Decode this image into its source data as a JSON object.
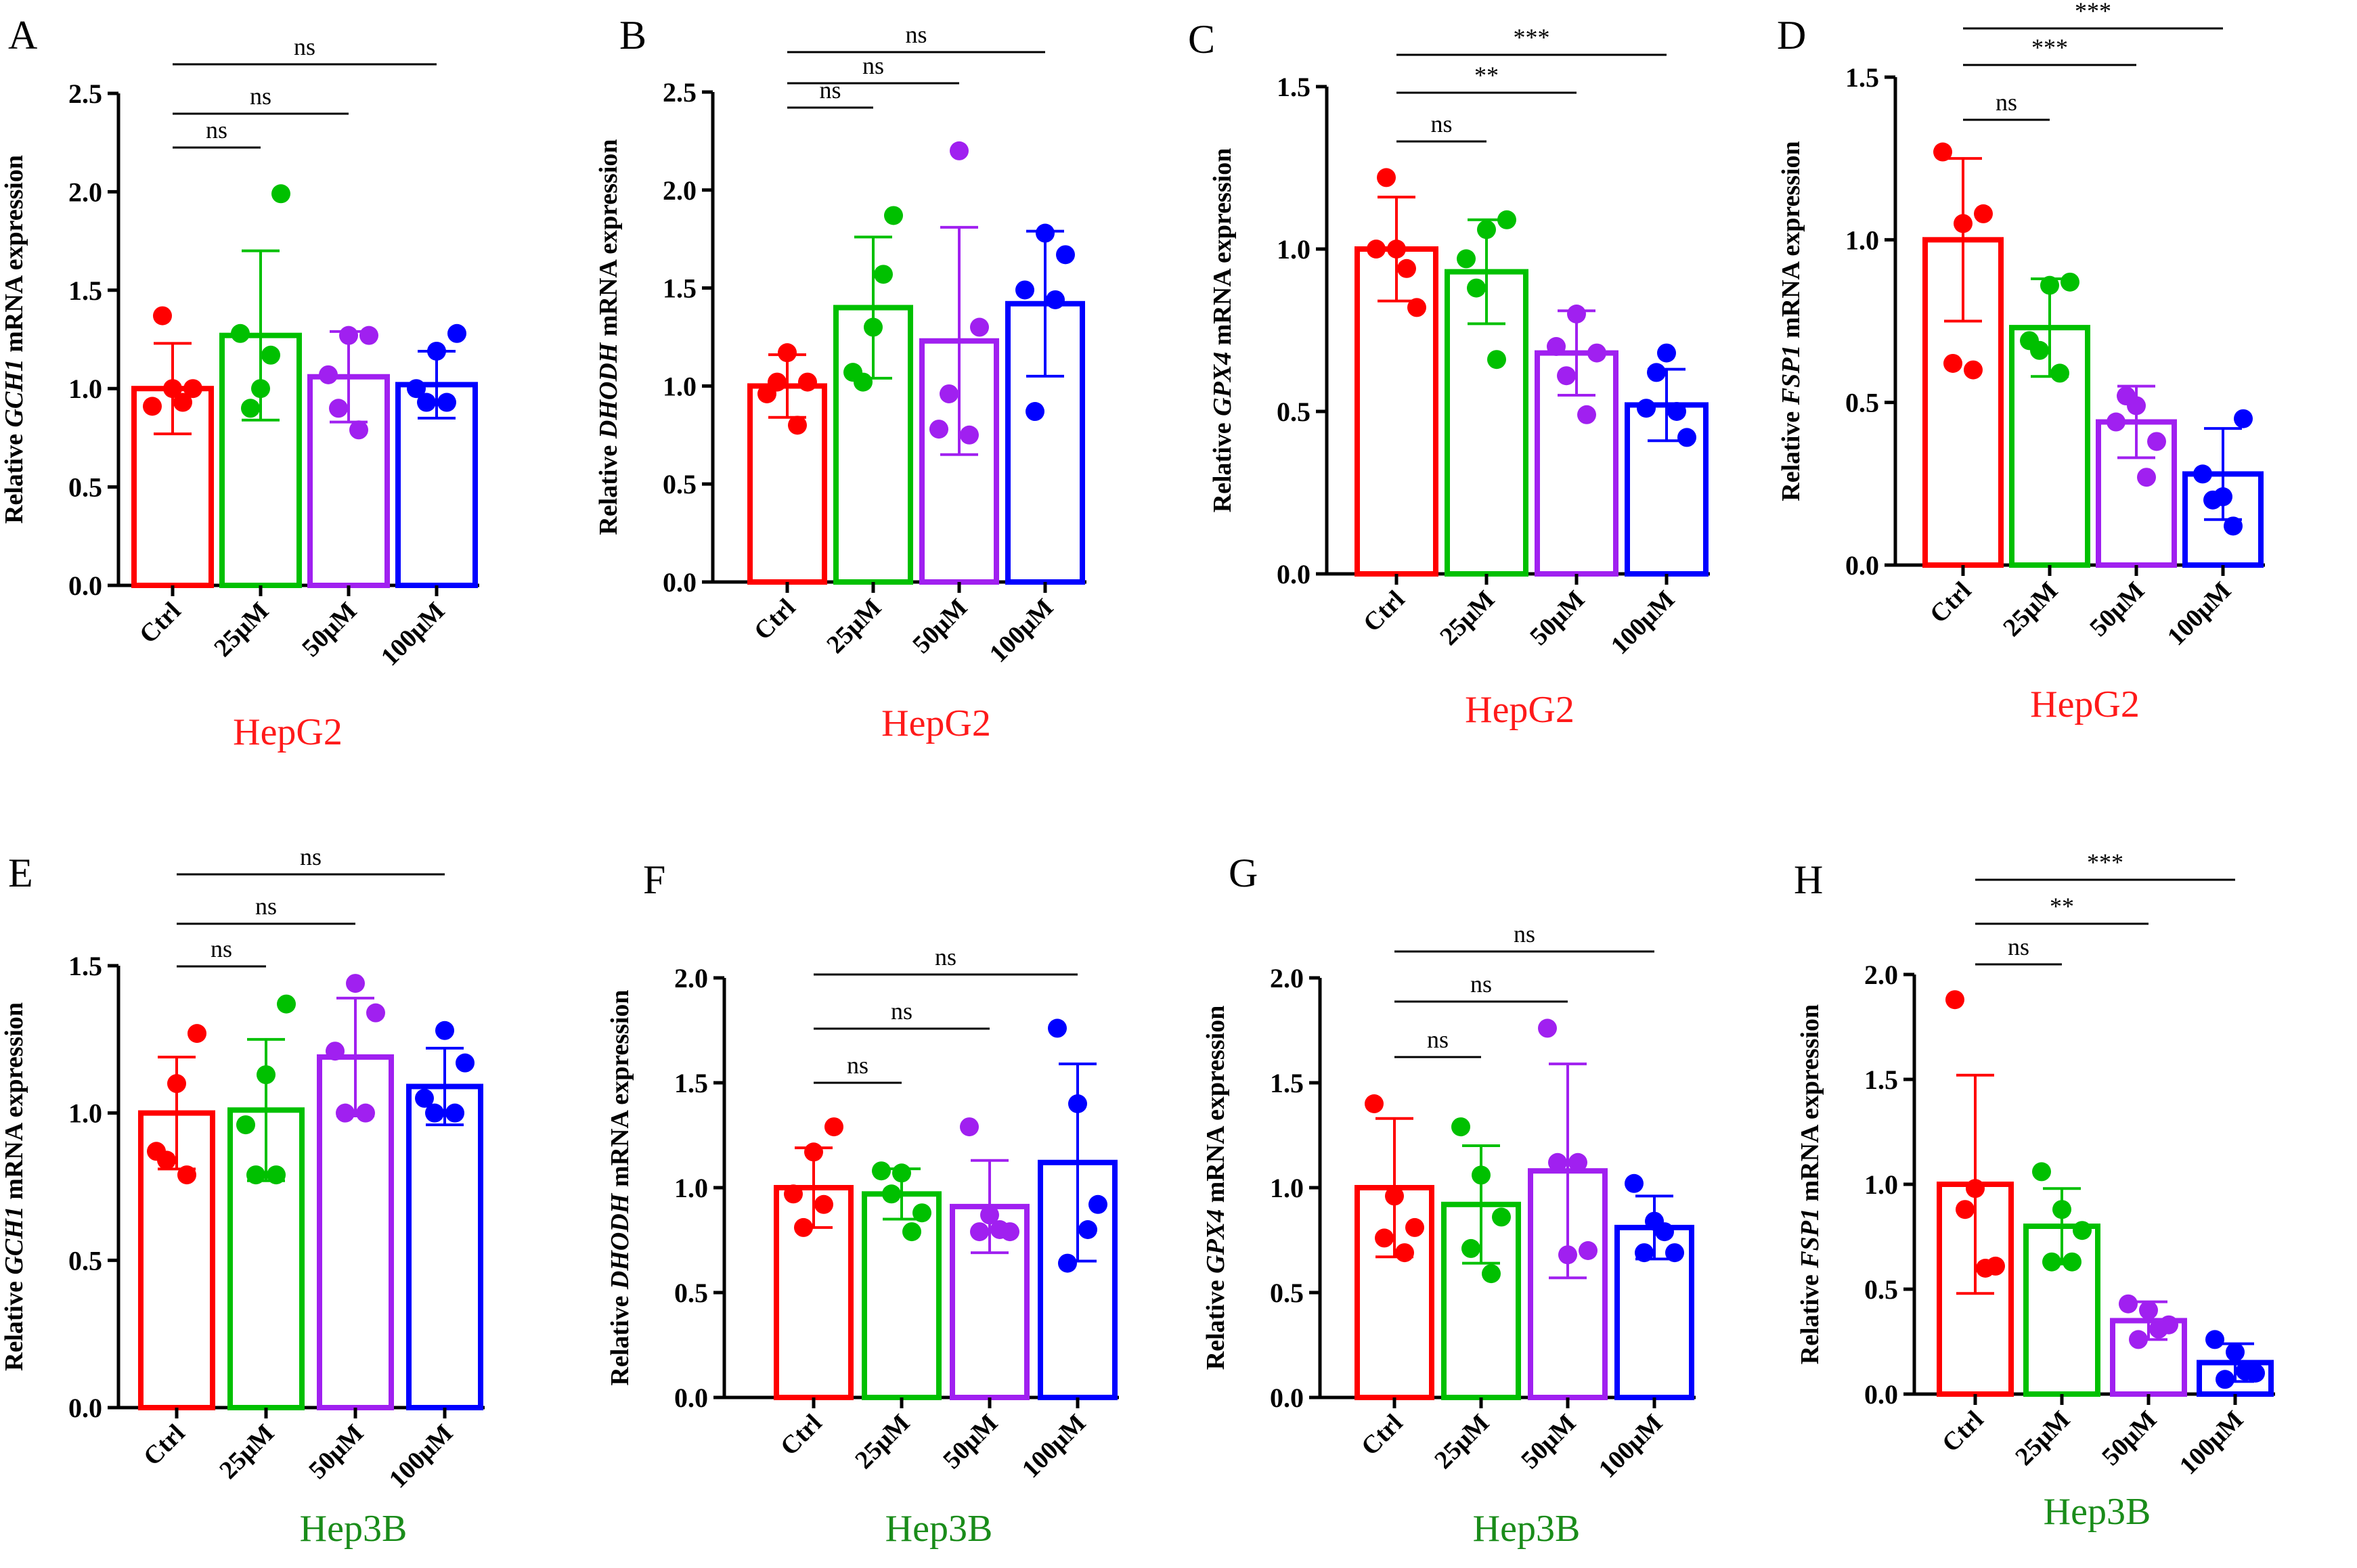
{
  "chart_data": [
    {
      "type": "bar",
      "panel": "A",
      "cell_line": "HepG2",
      "gene": "GCH1",
      "ylabel_prefix": "Relative ",
      "ylabel_suffix": " mRNA expression",
      "categories": [
        "Ctrl",
        "25μM",
        "50μM",
        "100μM"
      ],
      "ylim": [
        0,
        2.5
      ],
      "yticks": [
        "0.0",
        "0.5",
        "1.0",
        "1.5",
        "2.0",
        "2.5"
      ],
      "means": [
        1.0,
        1.27,
        1.06,
        1.02
      ],
      "sd": [
        0.23,
        0.43,
        0.23,
        0.17
      ],
      "points": [
        [
          0.91,
          1.0,
          1.0,
          1.37,
          0.93
        ],
        [
          1.28,
          1.0,
          1.99,
          0.9,
          1.17
        ],
        [
          1.07,
          1.27,
          1.27,
          0.9,
          0.79
        ],
        [
          1.0,
          1.19,
          1.28,
          0.93,
          0.93
        ]
      ],
      "comparisons": [
        {
          "from": 0,
          "to": 1,
          "label": "ns"
        },
        {
          "from": 0,
          "to": 2,
          "label": "ns"
        },
        {
          "from": 0,
          "to": 3,
          "label": "ns"
        }
      ]
    },
    {
      "type": "bar",
      "panel": "B",
      "cell_line": "HepG2",
      "gene": "DHODH",
      "ylabel_prefix": "Relative ",
      "ylabel_suffix": " mRNA expression",
      "categories": [
        "Ctrl",
        "25μM",
        "50μM",
        "100μM"
      ],
      "ylim": [
        0,
        2.5
      ],
      "yticks": [
        "0.0",
        "0.5",
        "1.0",
        "1.5",
        "2.0",
        "2.5"
      ],
      "means": [
        1.0,
        1.4,
        1.23,
        1.42
      ],
      "sd": [
        0.16,
        0.36,
        0.58,
        0.37
      ],
      "points": [
        [
          0.96,
          1.17,
          1.02,
          1.02,
          0.8
        ],
        [
          1.07,
          1.3,
          1.87,
          1.02,
          1.57
        ],
        [
          0.78,
          2.2,
          1.3,
          0.96,
          0.75
        ],
        [
          1.49,
          1.78,
          1.67,
          0.87,
          1.44
        ]
      ],
      "comparisons": [
        {
          "from": 0,
          "to": 1,
          "label": "ns"
        },
        {
          "from": 0,
          "to": 2,
          "label": "ns"
        },
        {
          "from": 0,
          "to": 3,
          "label": "ns"
        }
      ]
    },
    {
      "type": "bar",
      "panel": "C",
      "cell_line": "HepG2",
      "gene": "GPX4",
      "ylabel_prefix": "Relative ",
      "ylabel_suffix": " mRNA expression",
      "categories": [
        "Ctrl",
        "25μM",
        "50μM",
        "100μM"
      ],
      "ylim": [
        0,
        1.5
      ],
      "yticks": [
        "0.0",
        "0.5",
        "1.0",
        "1.5"
      ],
      "means": [
        1.0,
        0.93,
        0.68,
        0.52
      ],
      "sd": [
        0.16,
        0.16,
        0.13,
        0.11
      ],
      "points": [
        [
          1.0,
          1.0,
          0.82,
          1.22,
          0.94
        ],
        [
          0.97,
          1.06,
          1.09,
          0.88,
          0.66
        ],
        [
          0.7,
          0.8,
          0.68,
          0.61,
          0.49
        ],
        [
          0.51,
          0.68,
          0.42,
          0.62,
          0.5
        ]
      ],
      "comparisons": [
        {
          "from": 0,
          "to": 1,
          "label": "ns"
        },
        {
          "from": 0,
          "to": 2,
          "label": "**"
        },
        {
          "from": 0,
          "to": 3,
          "label": "***"
        }
      ]
    },
    {
      "type": "bar",
      "panel": "D",
      "cell_line": "HepG2",
      "gene": "FSP1",
      "ylabel_prefix": "Relative ",
      "ylabel_suffix": " mRNA expression",
      "categories": [
        "Ctrl",
        "25μM",
        "50μM",
        "100μM"
      ],
      "ylim": [
        0,
        1.5
      ],
      "yticks": [
        "0.0",
        "0.5",
        "1.0",
        "1.5"
      ],
      "means": [
        1.0,
        0.73,
        0.44,
        0.28
      ],
      "sd": [
        0.25,
        0.15,
        0.11,
        0.14
      ],
      "points": [
        [
          1.27,
          1.05,
          1.08,
          0.62,
          0.6
        ],
        [
          0.69,
          0.86,
          0.87,
          0.66,
          0.59
        ],
        [
          0.44,
          0.49,
          0.38,
          0.52,
          0.27
        ],
        [
          0.28,
          0.21,
          0.45,
          0.2,
          0.12
        ]
      ],
      "comparisons": [
        {
          "from": 0,
          "to": 1,
          "label": "ns"
        },
        {
          "from": 0,
          "to": 2,
          "label": "***"
        },
        {
          "from": 0,
          "to": 3,
          "label": "***"
        }
      ]
    },
    {
      "type": "bar",
      "panel": "E",
      "cell_line": "Hep3B",
      "gene": "GCH1",
      "ylabel_prefix": "Relative ",
      "ylabel_suffix": " mRNA expression",
      "categories": [
        "Ctrl",
        "25μM",
        "50μM",
        "100μM"
      ],
      "ylim": [
        0,
        1.5
      ],
      "yticks": [
        "0.0",
        "0.5",
        "1.0",
        "1.5"
      ],
      "means": [
        1.0,
        1.01,
        1.19,
        1.09
      ],
      "sd": [
        0.19,
        0.24,
        0.2,
        0.13
      ],
      "points": [
        [
          0.87,
          1.1,
          1.27,
          0.84,
          0.79
        ],
        [
          0.96,
          1.13,
          1.37,
          0.79,
          0.79
        ],
        [
          1.21,
          1.44,
          1.34,
          1.0,
          1.0
        ],
        [
          1.05,
          1.28,
          1.17,
          1.0,
          1.0
        ]
      ],
      "comparisons": [
        {
          "from": 0,
          "to": 1,
          "label": "ns"
        },
        {
          "from": 0,
          "to": 2,
          "label": "ns"
        },
        {
          "from": 0,
          "to": 3,
          "label": "ns"
        }
      ]
    },
    {
      "type": "bar",
      "panel": "F",
      "cell_line": "Hep3B",
      "gene": "DHODH",
      "ylabel_prefix": "Relative ",
      "ylabel_suffix": " mRNA expression",
      "categories": [
        "Ctrl",
        "25μM",
        "50μM",
        "100μM"
      ],
      "ylim": [
        0,
        2.0
      ],
      "yticks": [
        "0.0",
        "0.5",
        "1.0",
        "1.5",
        "2.0"
      ],
      "means": [
        1.0,
        0.97,
        0.91,
        1.12
      ],
      "sd": [
        0.19,
        0.12,
        0.22,
        0.47
      ],
      "points": [
        [
          0.97,
          1.17,
          1.29,
          0.81,
          0.92
        ],
        [
          1.08,
          1.07,
          0.88,
          0.97,
          0.79
        ],
        [
          1.29,
          0.87,
          0.79,
          0.79,
          0.8
        ],
        [
          1.76,
          1.4,
          0.92,
          0.64,
          0.8
        ]
      ],
      "comparisons": [
        {
          "from": 0,
          "to": 1,
          "label": "ns"
        },
        {
          "from": 0,
          "to": 2,
          "label": "ns"
        },
        {
          "from": 0,
          "to": 3,
          "label": "ns"
        }
      ]
    },
    {
      "type": "bar",
      "panel": "G",
      "cell_line": "Hep3B",
      "gene": "GPX4",
      "ylabel_prefix": "Relative ",
      "ylabel_suffix": " mRNA expression",
      "categories": [
        "Ctrl",
        "25μM",
        "50μM",
        "100μM"
      ],
      "ylim": [
        0,
        2.0
      ],
      "yticks": [
        "0.0",
        "0.5",
        "1.0",
        "1.5",
        "2.0"
      ],
      "means": [
        1.0,
        0.92,
        1.08,
        0.81
      ],
      "sd": [
        0.33,
        0.28,
        0.51,
        0.15
      ],
      "points": [
        [
          1.4,
          0.96,
          0.81,
          0.76,
          0.69
        ],
        [
          1.29,
          1.06,
          0.86,
          0.71,
          0.59
        ],
        [
          1.76,
          0.68,
          0.7,
          1.12,
          1.12
        ],
        [
          1.02,
          0.84,
          0.69,
          0.69,
          0.79
        ]
      ],
      "comparisons": [
        {
          "from": 0,
          "to": 1,
          "label": "ns"
        },
        {
          "from": 0,
          "to": 2,
          "label": "ns"
        },
        {
          "from": 0,
          "to": 3,
          "label": "ns"
        }
      ]
    },
    {
      "type": "bar",
      "panel": "H",
      "cell_line": "Hep3B",
      "gene": "FSP1",
      "ylabel_prefix": "Relative ",
      "ylabel_suffix": " mRNA expression",
      "categories": [
        "Ctrl",
        "25μM",
        "50μM",
        "100μM"
      ],
      "ylim": [
        0,
        2.0
      ],
      "yticks": [
        "0.0",
        "0.5",
        "1.0",
        "1.5",
        "2.0"
      ],
      "means": [
        1.0,
        0.8,
        0.35,
        0.15
      ],
      "sd": [
        0.52,
        0.18,
        0.09,
        0.09
      ],
      "points": [
        [
          1.88,
          0.98,
          0.61,
          0.88,
          0.6
        ],
        [
          1.06,
          0.88,
          0.78,
          0.63,
          0.63
        ],
        [
          0.43,
          0.4,
          0.33,
          0.26,
          0.31
        ],
        [
          0.26,
          0.2,
          0.1,
          0.07,
          0.11
        ]
      ],
      "comparisons": [
        {
          "from": 0,
          "to": 1,
          "label": "ns"
        },
        {
          "from": 0,
          "to": 2,
          "label": "**"
        },
        {
          "from": 0,
          "to": 3,
          "label": "***"
        }
      ]
    }
  ],
  "colors": {
    "groups": [
      "#ff0000",
      "#00c000",
      "#a020f0",
      "#0000ff"
    ],
    "hepg2_label": "#ff1a1a",
    "hep3b_label": "#1a8c1a",
    "axis": "#000000"
  }
}
